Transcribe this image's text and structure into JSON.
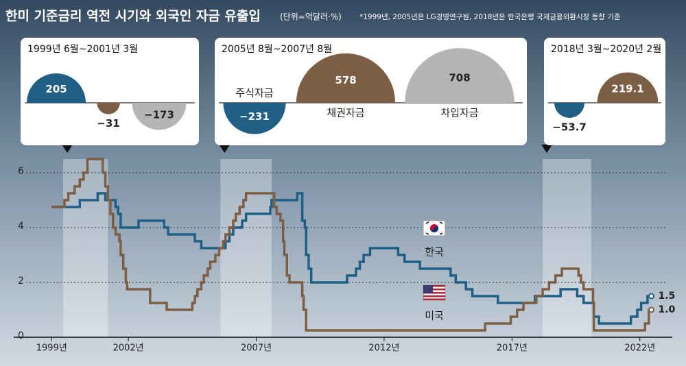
{
  "title": "한미 기준금리 역전 시기와 외국인 자금 유출입",
  "unit": "(단위=억달러·%)",
  "source": "*1999년, 2005년은 LG경영연구원, 2018년은 한국은행 국제금융외환시장 동향 기준",
  "chart_data": {
    "type": "line",
    "xlim": [
      1998.0,
      2023.0
    ],
    "xticks": [
      {
        "value": 1999,
        "label": "1999년"
      },
      {
        "value": 2002,
        "label": "2002년"
      },
      {
        "value": 2007,
        "label": "2007년"
      },
      {
        "value": 2012,
        "label": "2012년"
      },
      {
        "value": 2017,
        "label": "2017년"
      },
      {
        "value": 2022,
        "label": "2022년"
      }
    ],
    "ylim": [
      0,
      6.5
    ],
    "yticks": [
      0,
      2,
      4,
      6
    ],
    "grid": true,
    "series": [
      {
        "name": "한국",
        "color": "#1f5f86",
        "end_label": "1.5",
        "x": [
          1999.0,
          2000.1,
          2000.8,
          2001.1,
          2001.5,
          2001.6,
          2001.7,
          2002.4,
          2003.4,
          2003.55,
          2004.6,
          2004.85,
          2005.8,
          2005.95,
          2006.1,
          2006.45,
          2006.6,
          2007.55,
          2007.6,
          2008.6,
          2008.8,
          2008.9,
          2008.95,
          2009.05,
          2009.15,
          2010.55,
          2010.9,
          2011.05,
          2011.2,
          2011.45,
          2012.55,
          2012.8,
          2013.4,
          2014.6,
          2014.8,
          2015.2,
          2015.45,
          2016.45,
          2017.9,
          2018.9,
          2019.55,
          2019.8,
          2020.2,
          2020.4,
          2021.65,
          2021.9,
          2022.05,
          2022.3,
          2022.45
        ],
        "values": [
          4.75,
          5.0,
          5.25,
          5.0,
          4.75,
          4.5,
          4.0,
          4.25,
          4.0,
          3.75,
          3.5,
          3.25,
          3.5,
          3.75,
          4.0,
          4.25,
          4.5,
          4.75,
          5.0,
          5.25,
          4.25,
          4.0,
          3.0,
          2.5,
          2.0,
          2.25,
          2.5,
          2.75,
          3.0,
          3.25,
          3.0,
          2.75,
          2.5,
          2.25,
          2.0,
          1.75,
          1.5,
          1.25,
          1.5,
          1.75,
          1.5,
          1.25,
          0.75,
          0.5,
          0.75,
          1.0,
          1.25,
          1.5,
          1.5
        ]
      },
      {
        "name": "미국",
        "color": "#7b5e43",
        "end_label": "1.0",
        "x": [
          1999.0,
          1999.5,
          1999.65,
          1999.9,
          2000.1,
          2000.25,
          2000.4,
          2001.0,
          2001.1,
          2001.2,
          2001.3,
          2001.4,
          2001.5,
          2001.65,
          2001.7,
          2001.8,
          2001.9,
          2001.95,
          2002.85,
          2003.5,
          2004.5,
          2004.6,
          2004.7,
          2004.85,
          2004.95,
          2005.1,
          2005.2,
          2005.4,
          2005.55,
          2005.7,
          2005.8,
          2005.95,
          2006.1,
          2006.2,
          2006.35,
          2006.5,
          2006.6,
          2007.7,
          2007.8,
          2007.95,
          2008.05,
          2008.1,
          2008.2,
          2008.3,
          2008.8,
          2008.85,
          2008.95,
          2015.95,
          2016.95,
          2017.2,
          2017.45,
          2017.95,
          2018.2,
          2018.45,
          2018.7,
          2018.95,
          2019.6,
          2019.7,
          2019.8,
          2020.17,
          2020.2,
          2022.2,
          2022.35,
          2022.45
        ],
        "values": [
          4.75,
          5.0,
          5.25,
          5.5,
          5.75,
          6.0,
          6.5,
          6.0,
          5.5,
          5.0,
          4.5,
          4.0,
          3.75,
          3.5,
          3.0,
          2.5,
          2.0,
          1.75,
          1.25,
          1.0,
          1.25,
          1.5,
          1.75,
          2.0,
          2.25,
          2.5,
          2.75,
          3.0,
          3.25,
          3.5,
          3.75,
          4.0,
          4.25,
          4.5,
          4.75,
          5.0,
          5.25,
          4.75,
          4.5,
          4.25,
          3.5,
          3.0,
          2.25,
          2.0,
          1.5,
          1.0,
          0.25,
          0.5,
          0.75,
          1.0,
          1.25,
          1.5,
          1.75,
          2.0,
          2.25,
          2.5,
          2.25,
          2.0,
          1.75,
          1.25,
          0.25,
          0.5,
          1.0,
          1.0
        ]
      }
    ],
    "panel_colors": [
      "#1f5f86",
      "#7b5e43",
      "#b5b5b5"
    ],
    "panels": [
      {
        "title": "1999년 6월~2001년 3월",
        "start": 1999.45,
        "end": 2001.2,
        "values": [
          205,
          -31,
          -173
        ],
        "value_labels": [
          "205",
          "−31",
          "−173"
        ]
      },
      {
        "title": "2005년 8월~2007년 8월",
        "start": 2005.6,
        "end": 2007.6,
        "names": [
          "주식자금",
          "채권자금",
          "차입자금"
        ],
        "values": [
          -231,
          578,
          708
        ],
        "value_labels": [
          "−231",
          "578",
          "708"
        ]
      },
      {
        "title": "2018년 3월~2020년 2월",
        "start": 2018.2,
        "end": 2020.1,
        "values": [
          -53.7,
          219.1
        ],
        "value_labels": [
          "−53.7",
          "219.1"
        ]
      }
    ]
  }
}
